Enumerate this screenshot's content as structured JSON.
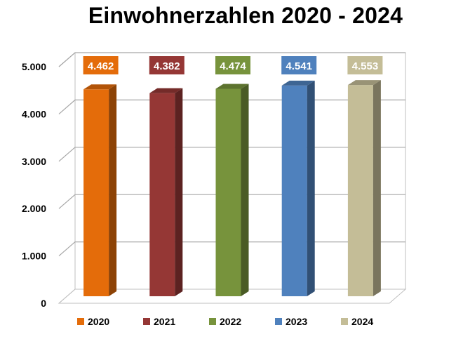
{
  "chart_data": {
    "type": "bar",
    "title": "Einwohnerzahlen 2020 - 2024",
    "categories": [
      "2020",
      "2021",
      "2022",
      "2023",
      "2024"
    ],
    "values": [
      4462,
      4382,
      4474,
      4541,
      4553
    ],
    "data_labels": [
      "4.462",
      "4.382",
      "4.474",
      "4.541",
      "4.553"
    ],
    "colors": [
      "#E46C0A",
      "#953735",
      "#77933C",
      "#4F81BD",
      "#C4BD97"
    ],
    "ylim": [
      0,
      5000
    ],
    "yticks": [
      0,
      1000,
      2000,
      3000,
      4000,
      5000
    ],
    "ytick_labels": [
      "0",
      "1.000",
      "2.000",
      "3.000",
      "4.000",
      "5.000"
    ],
    "xlabel": "",
    "ylabel": "",
    "grid": true,
    "legend_position": "bottom",
    "style": "3d-column"
  }
}
